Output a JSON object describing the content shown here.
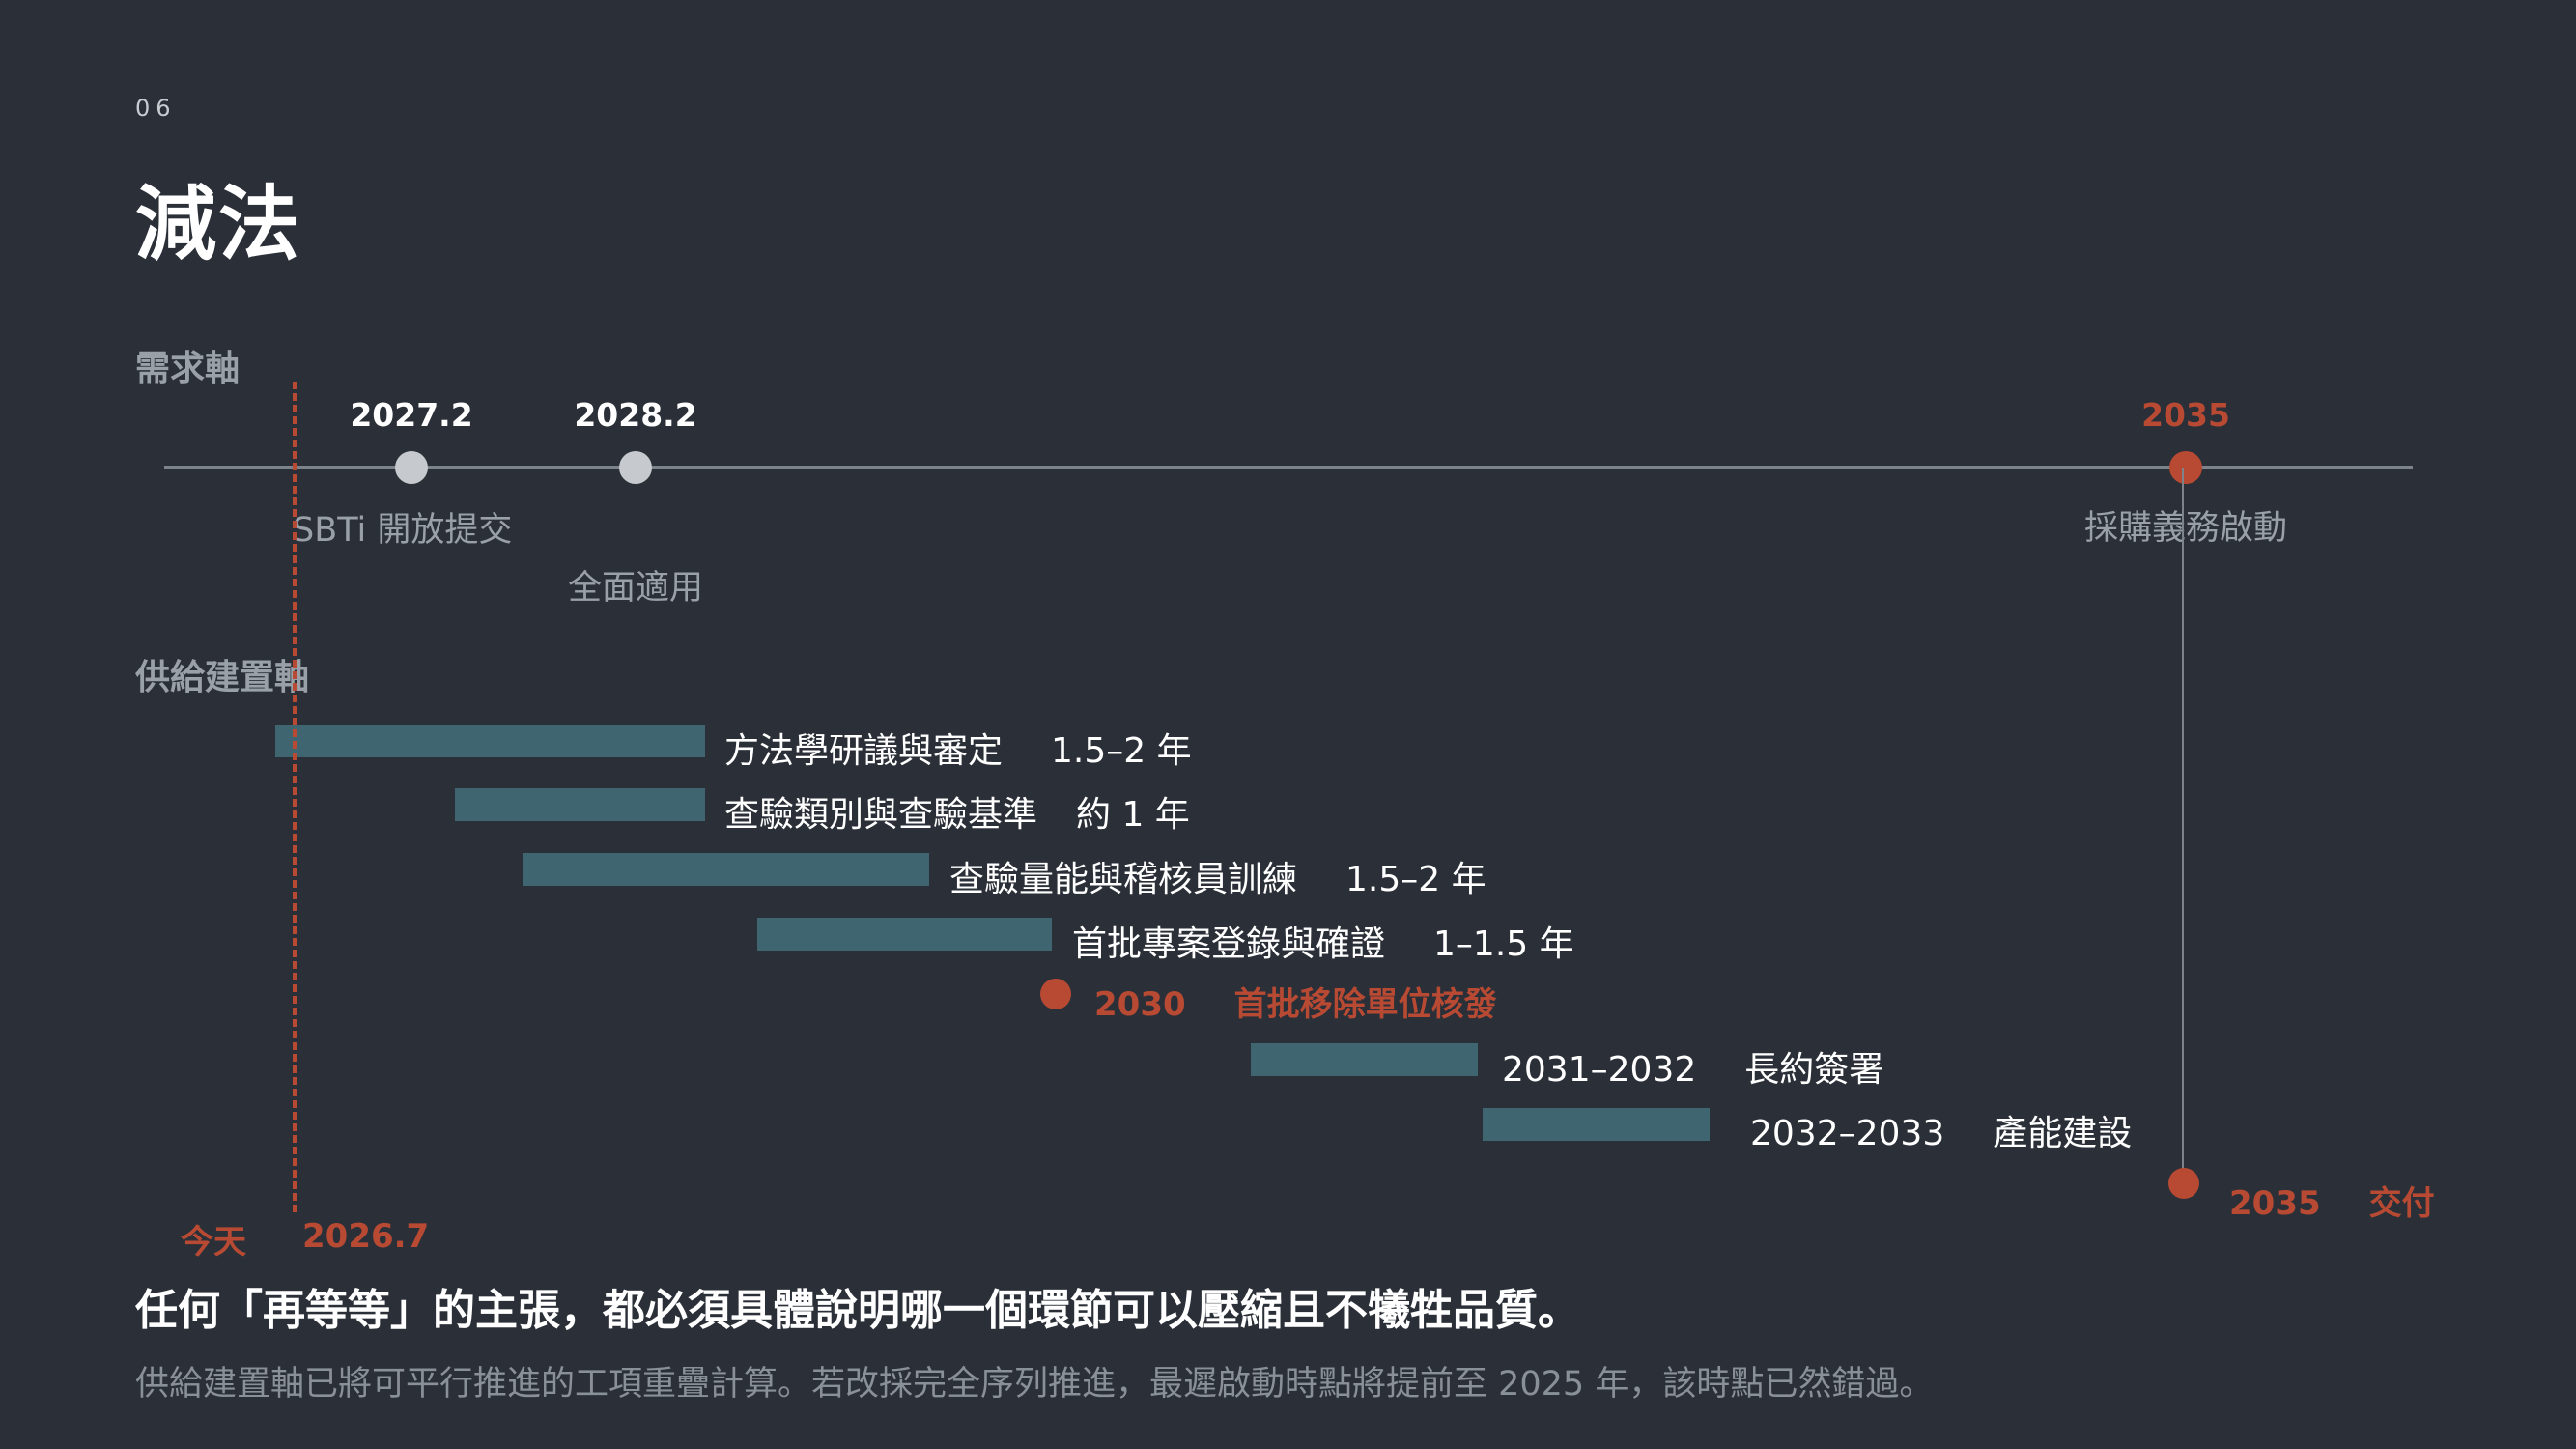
{
  "slide_number": "06",
  "title": "減法",
  "demand_axis": {
    "label": "需求軸",
    "milestones": [
      {
        "date": "2027.2",
        "event": "SBTi 開放提交"
      },
      {
        "date": "2028.2",
        "event": "全面適用"
      },
      {
        "date": "2035",
        "event": "採購義務啟動"
      }
    ]
  },
  "supply_axis": {
    "label": "供給建置軸",
    "tasks": [
      {
        "name": "方法學研議與審定",
        "duration": "1.5–2 年"
      },
      {
        "name": "查驗類別與查驗基準",
        "duration": "約 1 年"
      },
      {
        "name": "查驗量能與稽核員訓練",
        "duration": "1.5–2 年"
      },
      {
        "name": "首批專案登錄與確證",
        "duration": "1–1.5 年"
      },
      {
        "milestone_year": "2030",
        "milestone_text": "首批移除單位核發"
      },
      {
        "period": "2031–2032",
        "name": "長約簽署"
      },
      {
        "period": "2032–2033",
        "name": "產能建設"
      }
    ],
    "delivery": {
      "year": "2035",
      "text": "交付"
    }
  },
  "today": {
    "label": "今天",
    "date": "2026.7"
  },
  "conclusion": "任何「再等等」的主張，都必須具體說明哪一個環節可以壓縮且不犧牲品質。",
  "footnote": "供給建置軸已將可平行推進的工項重疊計算。若改採完全序列推進，最遲啟動時點將提前至 2025 年，該時點已然錯過。",
  "colors": {
    "background": "#2b3038",
    "accent_red": "#b84a33",
    "bar": "#3e6570",
    "muted_text": "#9aa0a8"
  }
}
